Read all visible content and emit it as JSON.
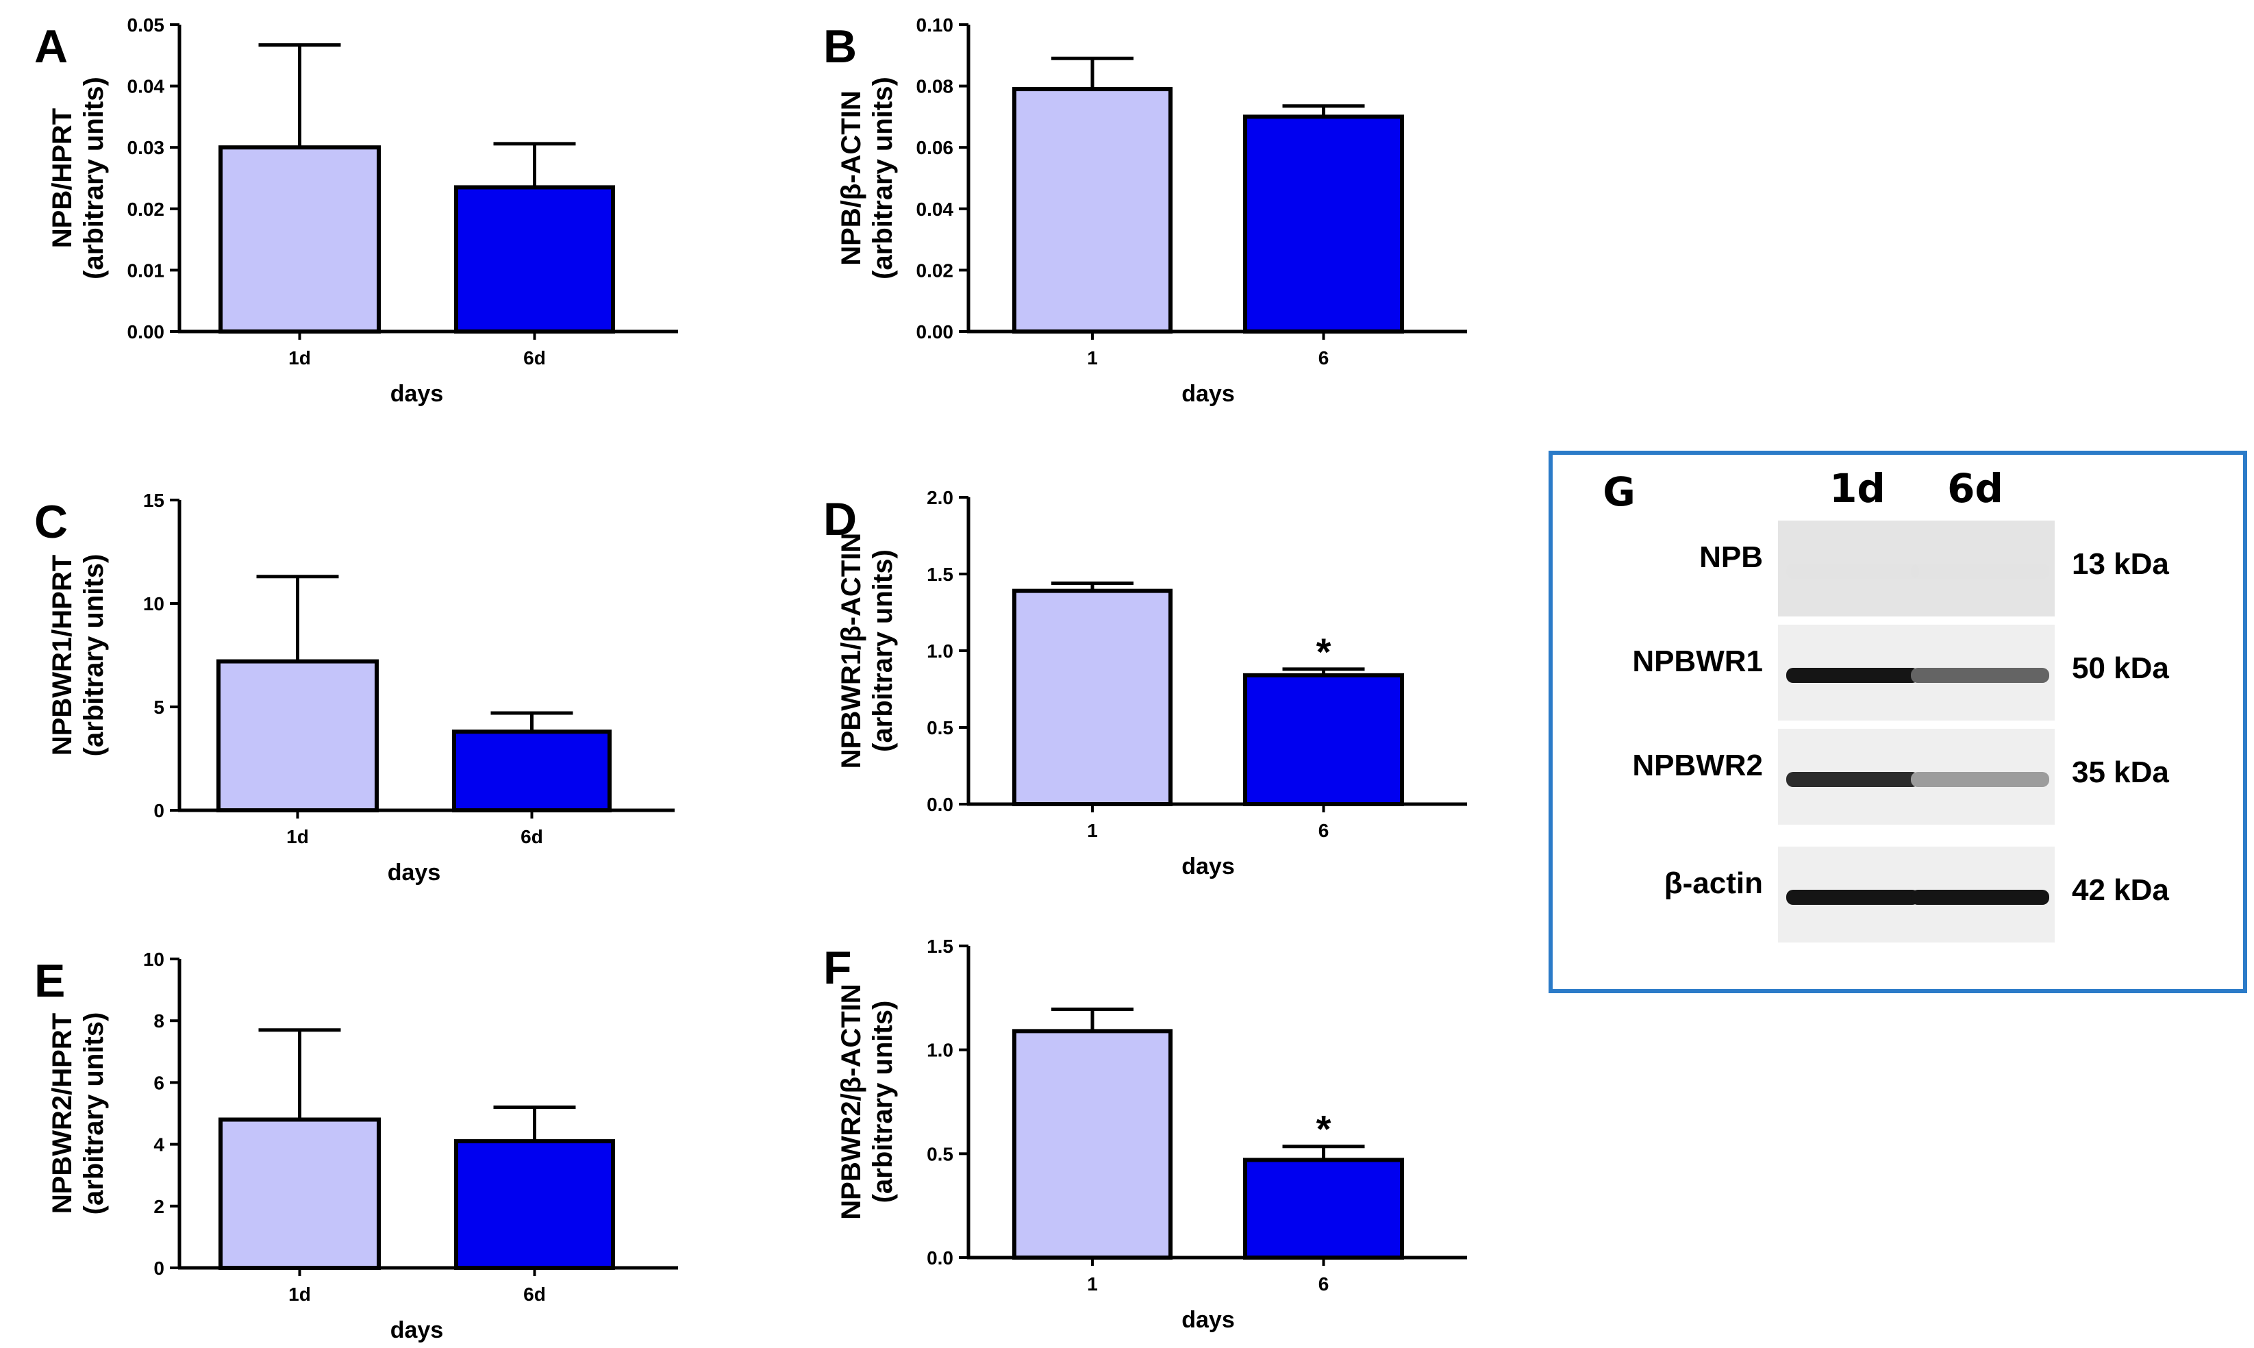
{
  "chart_data": [
    {
      "panel": "A",
      "type": "bar",
      "categories": [
        "1d",
        "6d"
      ],
      "values": [
        0.03,
        0.0235
      ],
      "error_upper": [
        0.0467,
        0.0306
      ],
      "significance": [
        "",
        ""
      ],
      "ylabel": "NPB/HPRT",
      "ylabel2": "(arbitrary units)",
      "xlabel": "days",
      "ylim": [
        0,
        0.05
      ],
      "yticks": [
        "0.00",
        "0.01",
        "0.02",
        "0.03",
        "0.04",
        "0.05"
      ]
    },
    {
      "panel": "B",
      "type": "bar",
      "categories": [
        "1",
        "6"
      ],
      "values": [
        0.079,
        0.07
      ],
      "error_upper": [
        0.089,
        0.0735
      ],
      "significance": [
        "",
        ""
      ],
      "ylabel": "NPB/β-ACTIN",
      "ylabel2": "(arbitrary units)",
      "xlabel": "days",
      "ylim": [
        0,
        0.1
      ],
      "yticks": [
        "0.00",
        "0.02",
        "0.04",
        "0.06",
        "0.08",
        "0.10"
      ]
    },
    {
      "panel": "C",
      "type": "bar",
      "categories": [
        "1d",
        "6d"
      ],
      "values": [
        7.2,
        3.8
      ],
      "error_upper": [
        11.3,
        4.7
      ],
      "significance": [
        "",
        ""
      ],
      "ylabel": "NPBWR1/HPRT",
      "ylabel2": "(arbitrary units)",
      "xlabel": "days",
      "ylim": [
        0,
        15
      ],
      "yticks": [
        "0",
        "5",
        "10",
        "15"
      ]
    },
    {
      "panel": "D",
      "type": "bar",
      "categories": [
        "1",
        "6"
      ],
      "values": [
        1.39,
        0.84
      ],
      "error_upper": [
        1.44,
        0.88
      ],
      "significance": [
        "",
        "*"
      ],
      "ylabel": "NPBWR1/β-ACTIN",
      "ylabel2": "(arbitrary units)",
      "xlabel": "days",
      "ylim": [
        0,
        2.0
      ],
      "yticks": [
        "0.0",
        "0.5",
        "1.0",
        "1.5",
        "2.0"
      ]
    },
    {
      "panel": "E",
      "type": "bar",
      "categories": [
        "1d",
        "6d"
      ],
      "values": [
        4.8,
        4.1
      ],
      "error_upper": [
        7.7,
        5.2
      ],
      "significance": [
        "",
        ""
      ],
      "ylabel": "NPBWR2/HPRT",
      "ylabel2": "(arbitrary units)",
      "xlabel": "days",
      "ylim": [
        0,
        10
      ],
      "yticks": [
        "0",
        "2",
        "4",
        "6",
        "8",
        "10"
      ]
    },
    {
      "panel": "F",
      "type": "bar",
      "categories": [
        "1",
        "6"
      ],
      "values": [
        1.09,
        0.47
      ],
      "error_upper": [
        1.195,
        0.535
      ],
      "significance": [
        "",
        "*"
      ],
      "ylabel": "NPBWR2/β-ACTIN",
      "ylabel2": "(arbitrary units)",
      "xlabel": "days",
      "ylim": [
        0,
        1.5
      ],
      "yticks": [
        "0.0",
        "0.5",
        "1.0",
        "1.5"
      ]
    }
  ],
  "colors": {
    "bar_1": "#c4c4fa",
    "bar_2": "#0000f0",
    "axis": "#000000",
    "blot_frame": "#2b7bc8"
  },
  "western_blot": {
    "panel": "G",
    "lanes": [
      "1d",
      "6d"
    ],
    "rows": [
      {
        "protein": "NPB",
        "weight": "13 kDa",
        "intensity": [
          0.05,
          0.04
        ]
      },
      {
        "protein": "NPBWR1",
        "weight": "50 kDa",
        "intensity": [
          0.95,
          0.6
        ]
      },
      {
        "protein": "NPBWR2",
        "weight": "35 kDa",
        "intensity": [
          0.85,
          0.35
        ]
      },
      {
        "protein": "β-actin",
        "weight": "42 kDa",
        "intensity": [
          0.95,
          0.95
        ]
      }
    ]
  }
}
